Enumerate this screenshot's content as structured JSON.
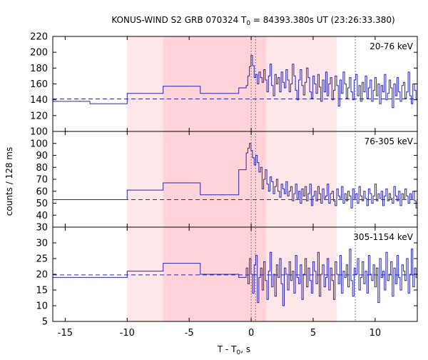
{
  "chart_data": {
    "type": "line",
    "title": {
      "pre": "KONUS-WIND S2 GRB 070324 T",
      "sub": "0",
      "post": " = 84393.380s UT (23:26:33.380)"
    },
    "xlabel": {
      "pre": "T - T",
      "sub": "0",
      "post": ", s"
    },
    "ylabel": "counts / 128 ms",
    "xlim": [
      -16,
      13.4
    ],
    "x_ticks": [
      -15,
      -10,
      -5,
      0,
      5,
      10
    ],
    "x_tick_labels": [
      "-15",
      "-10",
      "-5",
      "0",
      "5",
      "10"
    ],
    "shaded_regions": [
      {
        "x0": -10.0,
        "x1": 6.9,
        "color": "#ffe6e8"
      },
      {
        "x0": -7.1,
        "x1": 1.2,
        "color": "#ffd3d8"
      }
    ],
    "vertical_lines": [
      {
        "x": 0.0,
        "style": "dotted",
        "color": "#555555"
      },
      {
        "x": 0.35,
        "style": "dotted",
        "color": "#555555"
      },
      {
        "x": 8.4,
        "style": "dotted",
        "color": "#555555"
      }
    ],
    "series_color": "#2727a8",
    "panels": [
      {
        "band_label": "20-76 keV",
        "ylim": [
          100,
          220
        ],
        "y_ticks": [
          100,
          120,
          140,
          160,
          180,
          200,
          220
        ],
        "y_tick_labels": [
          "100",
          "120",
          "140",
          "160",
          "180",
          "200",
          "220"
        ],
        "background_level": 141,
        "coarse_steps": [
          {
            "x0": -16.0,
            "x1": -13.0,
            "y": 138
          },
          {
            "x0": -13.0,
            "x1": -10.0,
            "y": 135
          },
          {
            "x0": -10.0,
            "x1": -7.1,
            "y": 148
          },
          {
            "x0": -7.1,
            "x1": -4.1,
            "y": 157
          },
          {
            "x0": -4.1,
            "x1": -1.0,
            "y": 148
          },
          {
            "x0": -1.0,
            "x1": -0.4,
            "y": 155
          }
        ],
        "fine_start": -0.4,
        "fine_bin": 0.128,
        "fine_values": [
          158,
          170,
          182,
          196,
          183,
          168,
          172,
          160,
          175,
          168,
          162,
          178,
          165,
          150,
          170,
          185,
          158,
          145,
          172,
          160,
          168,
          150,
          175,
          162,
          155,
          178,
          165,
          150,
          160,
          185,
          170,
          152,
          140,
          165,
          178,
          158,
          146,
          162,
          180,
          168,
          150,
          142,
          170,
          160,
          148,
          172,
          156,
          138,
          165,
          150,
          175,
          145,
          160,
          168,
          140,
          152,
          170,
          158,
          132,
          165,
          148,
          175,
          160,
          142,
          155,
          168,
          150,
          140,
          165,
          172,
          145,
          158,
          138,
          162,
          150,
          170,
          142,
          155,
          165,
          138,
          152,
          168,
          145,
          160,
          135,
          158,
          150,
          172,
          140,
          148,
          165,
          155,
          130,
          160,
          145,
          168,
          150,
          138,
          158,
          162,
          142,
          150,
          175,
          145,
          135,
          160,
          152,
          140,
          165,
          148,
          130,
          158,
          150,
          162,
          138,
          145,
          168,
          152,
          140,
          155,
          160,
          135,
          148,
          165,
          142,
          150,
          158,
          138,
          170,
          145,
          152,
          160,
          140,
          132,
          155,
          148,
          165,
          150,
          135,
          142,
          158,
          160,
          140,
          150,
          145,
          130,
          162,
          148,
          155,
          138,
          150,
          165,
          142,
          135,
          158,
          148,
          160,
          140,
          152,
          145,
          132,
          155,
          160,
          142,
          148,
          150,
          138,
          162,
          145,
          140,
          155,
          150,
          135,
          160,
          148,
          142,
          152,
          145,
          138,
          158,
          150,
          140,
          165,
          145,
          132,
          152,
          148,
          160,
          140,
          155,
          145,
          138,
          162,
          150,
          142,
          148,
          158,
          135,
          150,
          145,
          160,
          140,
          152,
          148,
          138,
          155,
          145,
          150,
          135,
          160,
          148,
          142,
          155,
          140,
          150,
          145,
          132,
          158,
          150,
          140,
          152,
          148,
          160,
          142
        ]
      },
      {
        "band_label": "76-305 keV",
        "ylim": [
          30,
          110
        ],
        "y_ticks": [
          30,
          40,
          50,
          60,
          70,
          80,
          90,
          100
        ],
        "y_tick_labels": [
          "30",
          "40",
          "50",
          "60",
          "70",
          "80",
          "90",
          "100"
        ],
        "background_level": 53,
        "coarse_steps": [
          {
            "x0": -16.0,
            "x1": -10.0,
            "y": 53
          },
          {
            "x0": -10.0,
            "x1": -7.1,
            "y": 61
          },
          {
            "x0": -7.1,
            "x1": -4.1,
            "y": 67
          },
          {
            "x0": -4.1,
            "x1": -1.0,
            "y": 57
          },
          {
            "x0": -1.0,
            "x1": -0.4,
            "y": 78
          }
        ],
        "fine_start": -0.4,
        "fine_bin": 0.128,
        "fine_values": [
          92,
          96,
          100,
          94,
          88,
          82,
          90,
          84,
          76,
          80,
          62,
          70,
          78,
          66,
          60,
          72,
          68,
          58,
          64,
          70,
          60,
          55,
          66,
          62,
          58,
          68,
          56,
          60,
          64,
          52,
          58,
          66,
          54,
          60,
          50,
          62,
          56,
          64,
          52,
          58,
          66,
          48,
          56,
          60,
          52,
          64,
          58,
          50,
          62,
          54,
          56,
          66,
          50,
          58,
          60,
          52,
          48,
          62,
          56,
          54,
          64,
          50,
          58,
          52,
          60,
          56,
          46,
          62,
          54,
          58,
          50,
          64,
          56,
          52,
          60,
          54,
          48,
          62,
          58,
          50,
          56,
          66,
          52,
          58,
          54,
          60,
          48,
          56,
          62,
          52,
          58,
          54,
          50,
          64,
          56,
          52,
          60,
          48,
          58,
          54,
          62,
          56,
          50,
          58,
          54,
          60,
          52,
          46,
          62,
          56,
          58,
          52,
          64,
          54,
          50,
          58,
          60,
          52,
          56,
          48,
          62,
          54,
          58,
          56,
          50,
          60,
          52,
          58,
          54,
          62,
          48,
          56,
          60,
          52,
          58,
          54,
          64,
          50,
          56,
          58,
          52,
          60,
          54,
          48,
          62,
          56,
          52,
          58,
          60,
          54,
          50,
          56,
          62,
          52,
          58,
          54,
          46,
          60,
          56,
          52,
          58,
          62,
          54,
          50,
          56,
          60,
          52,
          58,
          48,
          62,
          54,
          56,
          52,
          60,
          58,
          50,
          56,
          54,
          62,
          52,
          58,
          54,
          48,
          60,
          56,
          52,
          58,
          62,
          54,
          50,
          56,
          60,
          52,
          44,
          58,
          54,
          62,
          56,
          50,
          58,
          54,
          60,
          52,
          56,
          48,
          62,
          54,
          58,
          52,
          60,
          56,
          50,
          58,
          54,
          62,
          44,
          56,
          60,
          52,
          58,
          54,
          62,
          50,
          56
        ]
      },
      {
        "band_label": "305-1154 keV",
        "ylim": [
          5,
          35
        ],
        "y_ticks": [
          5,
          10,
          15,
          20,
          25,
          30
        ],
        "y_tick_labels": [
          "5",
          "10",
          "15",
          "20",
          "25",
          "30"
        ],
        "background_level": 19.8,
        "coarse_steps": [
          {
            "x0": -16.0,
            "x1": -10.0,
            "y": 19
          },
          {
            "x0": -10.0,
            "x1": -7.1,
            "y": 21
          },
          {
            "x0": -7.1,
            "x1": -4.1,
            "y": 23.5
          },
          {
            "x0": -4.1,
            "x1": -1.0,
            "y": 20
          },
          {
            "x0": -1.0,
            "x1": -0.4,
            "y": 19
          }
        ],
        "fine_start": -0.4,
        "fine_bin": 0.128,
        "fine_values": [
          22,
          17,
          25,
          20,
          14,
          23,
          26,
          11,
          19,
          22,
          15,
          24,
          18,
          12,
          21,
          27,
          16,
          20,
          13,
          23,
          19,
          25,
          17,
          10,
          22,
          20,
          15,
          24,
          18,
          21,
          14,
          26,
          19,
          17,
          23,
          12,
          20,
          25,
          16,
          22,
          18,
          14,
          24,
          21,
          17,
          27,
          13,
          20,
          23,
          16,
          19,
          25,
          15,
          22,
          18,
          12,
          24,
          20,
          17,
          26,
          14,
          21,
          19,
          23,
          16,
          28,
          18,
          13,
          22,
          20,
          25,
          15,
          19,
          24,
          17,
          21,
          14,
          26,
          20,
          18,
          23,
          16,
          22,
          11,
          25,
          19,
          21,
          15,
          27,
          18,
          20,
          24,
          13,
          22,
          17,
          26,
          19,
          15,
          23,
          21,
          18,
          25,
          14,
          20,
          28,
          16,
          22,
          19,
          12,
          24,
          21,
          17,
          26,
          15,
          20,
          23,
          18,
          29,
          14,
          22,
          19,
          25,
          16,
          21,
          13,
          24,
          20,
          18,
          27,
          15,
          22,
          19,
          23,
          17,
          30,
          14,
          21,
          20,
          25,
          16,
          18,
          24,
          12,
          22,
          20,
          26,
          15,
          19,
          23,
          17,
          21,
          28,
          14,
          20,
          24,
          18,
          16,
          25,
          22,
          13,
          19,
          27,
          17,
          21,
          23,
          15,
          20,
          26,
          18,
          14,
          24,
          22,
          19,
          16,
          29,
          20,
          17,
          23,
          12,
          21,
          25,
          18,
          15,
          22,
          20,
          27,
          16,
          19,
          24,
          14,
          21,
          18,
          26,
          17,
          23,
          20,
          13,
          25,
          19,
          22,
          16,
          28,
          18,
          21,
          15,
          24,
          20,
          17,
          23,
          19,
          26,
          14,
          22,
          18,
          25,
          16,
          20,
          23,
          17,
          21,
          19,
          24,
          15,
          22
        ]
      }
    ]
  }
}
